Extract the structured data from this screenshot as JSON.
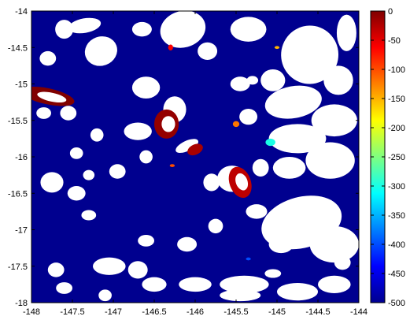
{
  "chart_data": {
    "type": "heatmap",
    "title": "",
    "xlabel": "",
    "ylabel": "",
    "xlim": [
      -148,
      -144
    ],
    "ylim": [
      -18,
      -14
    ],
    "x_ticks": [
      -148,
      -147.5,
      -147,
      -146.5,
      -146,
      -145.5,
      -145,
      -144.5,
      -144
    ],
    "y_ticks": [
      -14,
      -14.5,
      -15,
      -15.5,
      -16,
      -16.5,
      -17,
      -17.5,
      -18
    ],
    "x_tick_labels": [
      "-148",
      "-147.5",
      "-147",
      "-146.5",
      "-146",
      "-145.5",
      "-145",
      "-144.5",
      "-144"
    ],
    "y_tick_labels": [
      "-14",
      "-14.5",
      "-15",
      "-15.5",
      "-16",
      "-16.5",
      "-17",
      "-17.5",
      "-18"
    ],
    "colorbar": {
      "range": [
        -500,
        0
      ],
      "ticks": [
        0,
        -50,
        -100,
        -150,
        -200,
        -250,
        -300,
        -350,
        -400,
        -450,
        -500
      ],
      "tick_labels": [
        "0",
        "-50",
        "-100",
        "-150",
        "-200",
        "-250",
        "-300",
        "-350",
        "-400",
        "-450",
        "-500"
      ],
      "colormap": "jet"
    },
    "background_value": -500,
    "background_color": "#00008f",
    "no_data_color": "#ffffff",
    "no_data_regions": [
      {
        "lon": -147.6,
        "lat": -14.25,
        "rx": 0.11,
        "ry": 0.13,
        "rot": 0
      },
      {
        "lon": -147.35,
        "lat": -14.2,
        "rx": 0.2,
        "ry": 0.1,
        "rot": -10
      },
      {
        "lon": -147.8,
        "lat": -14.65,
        "rx": 0.1,
        "ry": 0.1,
        "rot": 0
      },
      {
        "lon": -147.15,
        "lat": -14.55,
        "rx": 0.2,
        "ry": 0.2,
        "rot": -20
      },
      {
        "lon": -146.65,
        "lat": -14.25,
        "rx": 0.12,
        "ry": 0.1,
        "rot": 0
      },
      {
        "lon": -146.15,
        "lat": -14.25,
        "rx": 0.28,
        "ry": 0.25,
        "rot": -15
      },
      {
        "lon": -145.85,
        "lat": -14.55,
        "rx": 0.12,
        "ry": 0.12,
        "rot": 0
      },
      {
        "lon": -145.35,
        "lat": -14.25,
        "rx": 0.22,
        "ry": 0.17,
        "rot": 0
      },
      {
        "lon": -144.6,
        "lat": -14.6,
        "rx": 0.35,
        "ry": 0.4,
        "rot": 10
      },
      {
        "lon": -144.15,
        "lat": -14.3,
        "rx": 0.12,
        "ry": 0.25,
        "rot": 0
      },
      {
        "lon": -144.25,
        "lat": -14.95,
        "rx": 0.18,
        "ry": 0.2,
        "rot": 0
      },
      {
        "lon": -145.05,
        "lat": -14.95,
        "rx": 0.15,
        "ry": 0.15,
        "rot": 0
      },
      {
        "lon": -145.45,
        "lat": -15.0,
        "rx": 0.12,
        "ry": 0.1,
        "rot": 0
      },
      {
        "lon": -145.3,
        "lat": -14.95,
        "rx": 0.07,
        "ry": 0.06,
        "rot": 0
      },
      {
        "lon": -144.8,
        "lat": -15.25,
        "rx": 0.35,
        "ry": 0.22,
        "rot": -10
      },
      {
        "lon": -144.3,
        "lat": -15.5,
        "rx": 0.28,
        "ry": 0.22,
        "rot": 0
      },
      {
        "lon": -144.75,
        "lat": -15.75,
        "rx": 0.35,
        "ry": 0.2,
        "rot": 0
      },
      {
        "lon": -144.35,
        "lat": -16.05,
        "rx": 0.3,
        "ry": 0.25,
        "rot": 0
      },
      {
        "lon": -145.35,
        "lat": -15.45,
        "rx": 0.11,
        "ry": 0.11,
        "rot": 0
      },
      {
        "lon": -146.6,
        "lat": -15.05,
        "rx": 0.17,
        "ry": 0.15,
        "rot": 0
      },
      {
        "lon": -146.25,
        "lat": -15.35,
        "rx": 0.14,
        "ry": 0.18,
        "rot": 0
      },
      {
        "lon": -146.7,
        "lat": -15.65,
        "rx": 0.17,
        "ry": 0.12,
        "rot": 0
      },
      {
        "lon": -147.55,
        "lat": -15.4,
        "rx": 0.1,
        "ry": 0.1,
        "rot": 0
      },
      {
        "lon": -147.85,
        "lat": -15.4,
        "rx": 0.09,
        "ry": 0.08,
        "rot": 0
      },
      {
        "lon": -147.2,
        "lat": -15.7,
        "rx": 0.08,
        "ry": 0.09,
        "rot": 0
      },
      {
        "lon": -147.45,
        "lat": -15.95,
        "rx": 0.08,
        "ry": 0.08,
        "rot": 0
      },
      {
        "lon": -146.95,
        "lat": -16.2,
        "rx": 0.1,
        "ry": 0.1,
        "rot": 0
      },
      {
        "lon": -146.6,
        "lat": -16.0,
        "rx": 0.08,
        "ry": 0.09,
        "rot": 0
      },
      {
        "lon": -146.1,
        "lat": -15.85,
        "rx": 0.15,
        "ry": 0.07,
        "rot": -25
      },
      {
        "lon": -145.55,
        "lat": -16.3,
        "rx": 0.18,
        "ry": 0.18,
        "rot": 0
      },
      {
        "lon": -145.8,
        "lat": -16.35,
        "rx": 0.1,
        "ry": 0.12,
        "rot": 0
      },
      {
        "lon": -144.85,
        "lat": -16.15,
        "rx": 0.2,
        "ry": 0.15,
        "rot": 0
      },
      {
        "lon": -145.2,
        "lat": -16.15,
        "rx": 0.1,
        "ry": 0.12,
        "rot": 0
      },
      {
        "lon": -147.75,
        "lat": -16.35,
        "rx": 0.14,
        "ry": 0.14,
        "rot": 0
      },
      {
        "lon": -147.45,
        "lat": -16.5,
        "rx": 0.11,
        "ry": 0.1,
        "rot": 0
      },
      {
        "lon": -147.3,
        "lat": -16.25,
        "rx": 0.07,
        "ry": 0.07,
        "rot": 0
      },
      {
        "lon": -147.3,
        "lat": -16.8,
        "rx": 0.09,
        "ry": 0.07,
        "rot": 0
      },
      {
        "lon": -145.25,
        "lat": -16.75,
        "rx": 0.13,
        "ry": 0.1,
        "rot": 0
      },
      {
        "lon": -145.75,
        "lat": -16.95,
        "rx": 0.09,
        "ry": 0.1,
        "rot": 0
      },
      {
        "lon": -144.7,
        "lat": -16.9,
        "rx": 0.5,
        "ry": 0.35,
        "rot": -15
      },
      {
        "lon": -144.3,
        "lat": -17.2,
        "rx": 0.3,
        "ry": 0.25,
        "rot": 0
      },
      {
        "lon": -144.95,
        "lat": -17.2,
        "rx": 0.15,
        "ry": 0.12,
        "rot": 0
      },
      {
        "lon": -146.6,
        "lat": -17.15,
        "rx": 0.1,
        "ry": 0.08,
        "rot": 0
      },
      {
        "lon": -146.1,
        "lat": -17.2,
        "rx": 0.12,
        "ry": 0.1,
        "rot": 0
      },
      {
        "lon": -147.7,
        "lat": -17.55,
        "rx": 0.1,
        "ry": 0.1,
        "rot": 0
      },
      {
        "lon": -147.05,
        "lat": -17.5,
        "rx": 0.2,
        "ry": 0.12,
        "rot": 0
      },
      {
        "lon": -146.7,
        "lat": -17.55,
        "rx": 0.12,
        "ry": 0.12,
        "rot": 0
      },
      {
        "lon": -147.6,
        "lat": -17.8,
        "rx": 0.1,
        "ry": 0.08,
        "rot": 0
      },
      {
        "lon": -147.1,
        "lat": -17.9,
        "rx": 0.08,
        "ry": 0.08,
        "rot": 0
      },
      {
        "lon": -146.5,
        "lat": -17.75,
        "rx": 0.15,
        "ry": 0.1,
        "rot": 0
      },
      {
        "lon": -146.0,
        "lat": -17.75,
        "rx": 0.2,
        "ry": 0.1,
        "rot": 0
      },
      {
        "lon": -145.4,
        "lat": -17.75,
        "rx": 0.3,
        "ry": 0.12,
        "rot": 0
      },
      {
        "lon": -145.45,
        "lat": -17.9,
        "rx": 0.25,
        "ry": 0.08,
        "rot": 0
      },
      {
        "lon": -144.75,
        "lat": -17.85,
        "rx": 0.25,
        "ry": 0.12,
        "rot": 0
      },
      {
        "lon": -144.3,
        "lat": -17.75,
        "rx": 0.2,
        "ry": 0.12,
        "rot": 0
      },
      {
        "lon": -144.2,
        "lat": -17.45,
        "rx": 0.1,
        "ry": 0.1,
        "rot": 0
      },
      {
        "lon": -145.05,
        "lat": -17.6,
        "rx": 0.1,
        "ry": 0.06,
        "rot": 0
      }
    ],
    "features": [
      {
        "lon": -147.8,
        "lat": -15.17,
        "rx": 0.33,
        "ry": 0.11,
        "rot": 12,
        "value": 0,
        "hole": true
      },
      {
        "lon": -146.35,
        "lat": -15.55,
        "rx": 0.15,
        "ry": 0.2,
        "rot": 0,
        "value": -10,
        "hole": true
      },
      {
        "lon": -145.45,
        "lat": -16.35,
        "rx": 0.13,
        "ry": 0.22,
        "rot": -20,
        "value": -30,
        "hole": true
      },
      {
        "lon": -146.0,
        "lat": -15.9,
        "rx": 0.1,
        "ry": 0.07,
        "rot": -25,
        "value": -20,
        "hole": false
      },
      {
        "lon": -146.3,
        "lat": -14.5,
        "rx": 0.03,
        "ry": 0.04,
        "rot": 0,
        "value": -60,
        "hole": false
      },
      {
        "lon": -145.5,
        "lat": -15.55,
        "rx": 0.04,
        "ry": 0.04,
        "rot": 0,
        "value": -120,
        "hole": false
      },
      {
        "lon": -145.08,
        "lat": -15.8,
        "rx": 0.06,
        "ry": 0.05,
        "rot": 0,
        "value": -300,
        "hole": false
      },
      {
        "lon": -146.28,
        "lat": -16.12,
        "rx": 0.03,
        "ry": 0.02,
        "rot": 0,
        "value": -100,
        "hole": false
      },
      {
        "lon": -145.0,
        "lat": -14.5,
        "rx": 0.03,
        "ry": 0.02,
        "rot": 0,
        "value": -150,
        "hole": false
      },
      {
        "lon": -145.35,
        "lat": -17.4,
        "rx": 0.03,
        "ry": 0.02,
        "rot": 0,
        "value": -400,
        "hole": false
      }
    ]
  }
}
